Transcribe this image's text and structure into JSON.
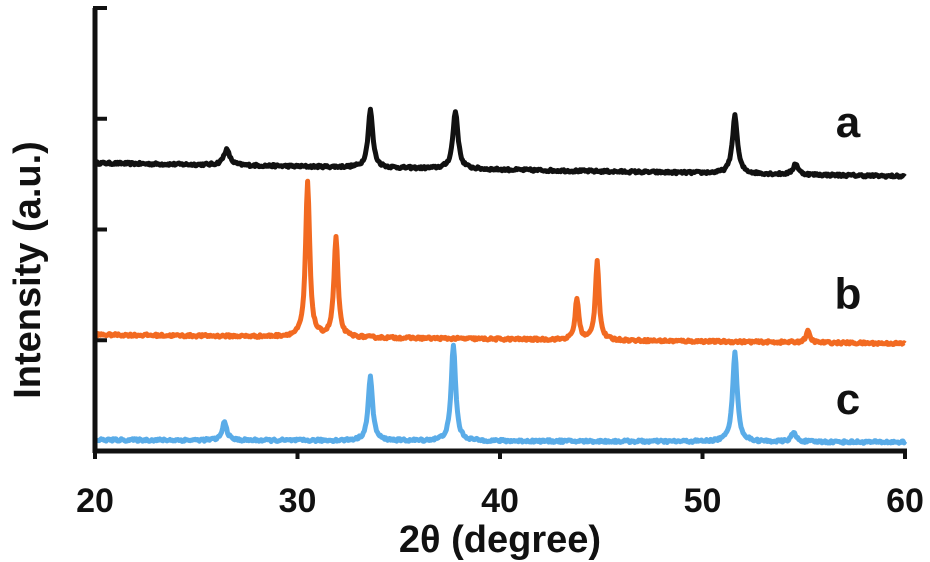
{
  "chart_data": {
    "type": "line",
    "xlabel": "2θ (degree)",
    "ylabel": "Intensity (a.u.)",
    "xlim": [
      20,
      60
    ],
    "x_ticks": [
      20,
      30,
      40,
      50,
      60
    ],
    "y_tick_count": 5,
    "grid": false,
    "series": [
      {
        "name": "a",
        "color": "#111111",
        "baseline": 2.6,
        "noise": 0.012,
        "slope": -0.003,
        "peaks": [
          {
            "x": 26.5,
            "height": 0.14,
            "width": 0.18
          },
          {
            "x": 33.6,
            "height": 0.52,
            "width": 0.14
          },
          {
            "x": 37.8,
            "height": 0.52,
            "width": 0.15
          },
          {
            "x": 51.6,
            "height": 0.52,
            "width": 0.15
          },
          {
            "x": 54.6,
            "height": 0.1,
            "width": 0.14
          }
        ]
      },
      {
        "name": "b",
        "color": "#f26a21",
        "baseline": 1.05,
        "noise": 0.012,
        "slope": -0.002,
        "peaks": [
          {
            "x": 30.5,
            "height": 1.4,
            "width": 0.12
          },
          {
            "x": 31.9,
            "height": 0.9,
            "width": 0.12
          },
          {
            "x": 43.8,
            "height": 0.37,
            "width": 0.11
          },
          {
            "x": 44.8,
            "height": 0.72,
            "width": 0.11
          },
          {
            "x": 55.2,
            "height": 0.1,
            "width": 0.12
          }
        ]
      },
      {
        "name": "c",
        "color": "#5aace8",
        "baseline": 0.1,
        "noise": 0.012,
        "slope": -0.0005,
        "peaks": [
          {
            "x": 26.4,
            "height": 0.17,
            "width": 0.13
          },
          {
            "x": 33.6,
            "height": 0.58,
            "width": 0.13
          },
          {
            "x": 37.7,
            "height": 0.87,
            "width": 0.13
          },
          {
            "x": 51.6,
            "height": 0.8,
            "width": 0.14
          },
          {
            "x": 54.5,
            "height": 0.08,
            "width": 0.15
          }
        ]
      }
    ]
  }
}
